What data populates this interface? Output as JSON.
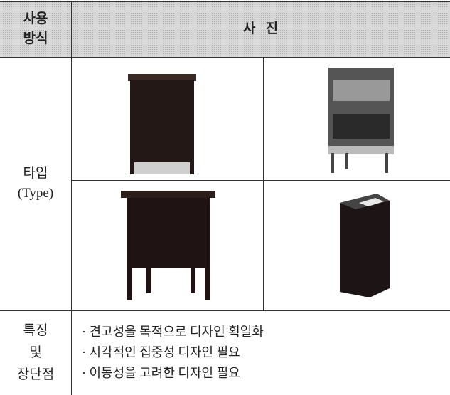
{
  "table": {
    "header": {
      "usage_label": [
        "사용",
        "방식"
      ],
      "photo_label": "사   진"
    },
    "type_label": [
      "타입",
      "(Type)"
    ],
    "features_label": [
      "특징",
      "및",
      "장단점"
    ],
    "features": [
      "· 견고성을 목적으로 디자인 획일화",
      "· 시각적인 집중성 디자인 필요",
      "· 이동성을 고려한 디자인 필요"
    ]
  }
}
